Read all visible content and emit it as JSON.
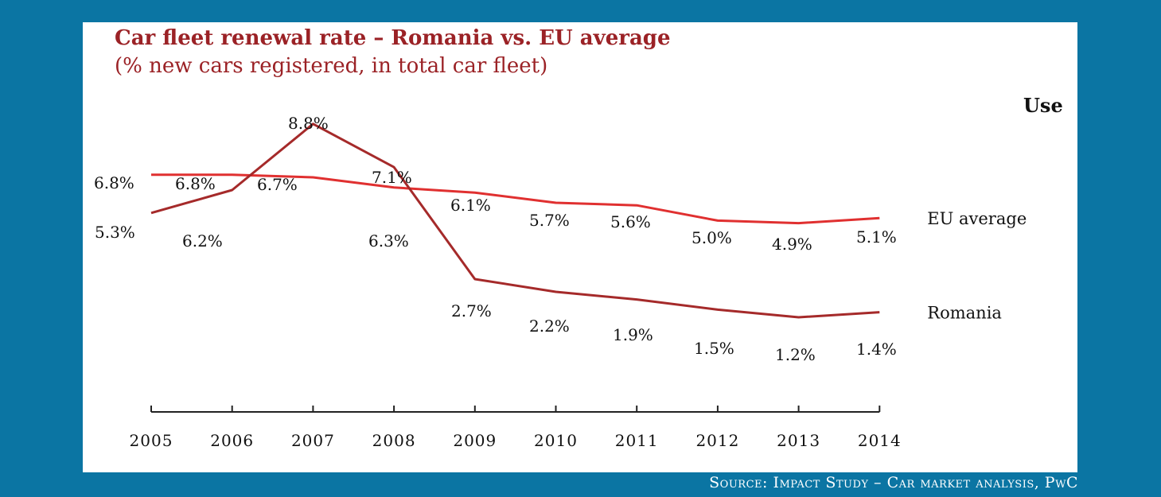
{
  "chart_data": {
    "type": "line",
    "title": "Car fleet renewal rate – Romania vs. EU average",
    "subtitle": "(% new cars registered, in total car fleet)",
    "categories": [
      "2005",
      "2006",
      "2007",
      "2008",
      "2009",
      "2010",
      "2011",
      "2012",
      "2013",
      "2014"
    ],
    "series": [
      {
        "name": "EU average",
        "color": "#e03030",
        "values": [
          6.8,
          6.8,
          6.7,
          6.3,
          6.1,
          5.7,
          5.6,
          5.0,
          4.9,
          5.1
        ],
        "labels": [
          "6.8%",
          "6.8%",
          "6.7%",
          "",
          "6.1%",
          "5.7%",
          "5.6%",
          "5.0%",
          "4.9%",
          "5.1%"
        ]
      },
      {
        "name": "Romania",
        "color": "#a52a2a",
        "values": [
          5.3,
          6.2,
          8.8,
          7.1,
          2.7,
          2.2,
          1.9,
          1.5,
          1.2,
          1.4
        ],
        "labels": [
          "5.3%",
          "6.2%",
          "8.8%",
          "7.1%",
          "2.7%",
          "2.2%",
          "1.9%",
          "1.5%",
          "1.2%",
          "1.4%"
        ]
      }
    ],
    "extra_labels": [
      "6.3%"
    ],
    "grid": false,
    "legend": "right-end labels"
  },
  "cut_text": "Use",
  "source": "Source: Impact Study – Car market analysis, PwC"
}
